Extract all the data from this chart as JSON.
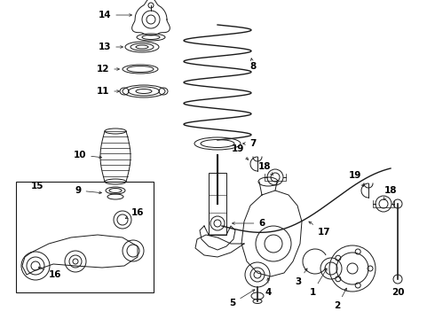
{
  "bg_color": "#ffffff",
  "fig_width": 4.9,
  "fig_height": 3.6,
  "dpi": 100,
  "line_color": "#1a1a1a",
  "label_fontsize": 7.5,
  "label_color": "#000000"
}
